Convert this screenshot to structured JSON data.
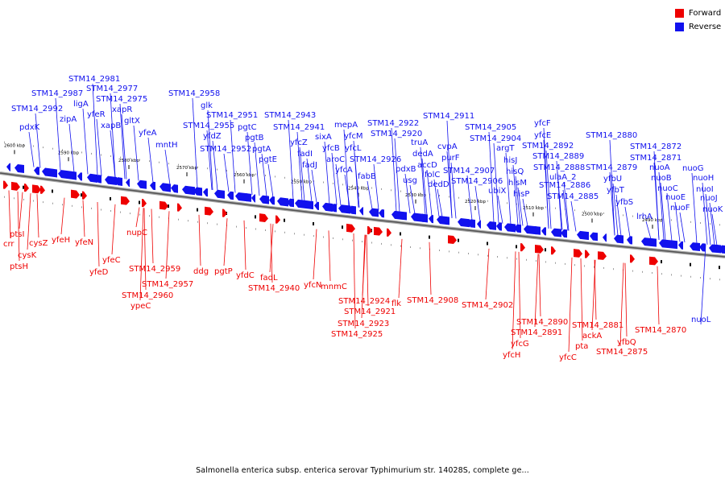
{
  "legend": {
    "items": [
      {
        "label": "Forward",
        "color": "#ee0000"
      },
      {
        "label": "Reverse",
        "color": "#1111ee"
      }
    ]
  },
  "colors": {
    "forward": "#ee0000",
    "reverse": "#1111ee",
    "backbone": "#888888"
  },
  "caption": "Salmonella enterica subsp. enterica serovar Typhimurium str. 14028S, complete ge...",
  "ticks": [
    "2600 kbp",
    "2590 kbp",
    "2580 kbp",
    "2570 kbp",
    "2560 kbp",
    "2550 kbp",
    "2540 kbp",
    "2530 kbp",
    "2520 kbp",
    "2510 kbp",
    "2500 kbp",
    "2490 kbp"
  ],
  "reverse_labels": [
    "STM14_2992",
    "pdxK",
    "STM14_2987",
    "zipA",
    "STM14_2981",
    "ligA",
    "STM14_2977",
    "yfeR",
    "STM14_2975",
    "xapR",
    "xapB",
    "gltX",
    "yfeA",
    "mntH",
    "STM14_2958",
    "glk",
    "STM14_2951",
    "STM14_2955",
    "pgtC",
    "yfdZ",
    "pgtB",
    "STM14_2952",
    "pgtA",
    "pgtE",
    "STM14_2943",
    "STM14_2941",
    "yfcZ",
    "fadI",
    "fadJ",
    "sixA",
    "yfcB",
    "aroC",
    "mepA",
    "yfcM",
    "yfcL",
    "yfcA",
    "STM14_2926",
    "fabB",
    "STM14_2922",
    "STM14_2920",
    "pdxB",
    "usg",
    "truA",
    "dedA",
    "accD",
    "folC",
    "dedD",
    "STM14_2911",
    "cvpA",
    "purF",
    "STM14_2907",
    "STM14_2906",
    "STM14_2905",
    "STM14_2904",
    "argT",
    "ubiX",
    "hisJ",
    "hisQ",
    "hisM",
    "hisP",
    "yfcF",
    "yfcE",
    "STM14_2892",
    "STM14_2889",
    "STM14_2888",
    "ulaA_2",
    "STM14_2886",
    "STM14_2885",
    "STM14_2880",
    "STM14_2879",
    "yfbU",
    "yfbT",
    "yfbS",
    "lrhA",
    "STM14_2872",
    "STM14_2871",
    "nuoA",
    "nuoB",
    "nuoC",
    "nuoE",
    "nuoF",
    "nuoG",
    "nuoH",
    "nuoI",
    "nuoJ",
    "nuoK",
    "nuoL"
  ],
  "forward_labels": [
    "crr",
    "ptsI",
    "ptsH",
    "cysK",
    "cysZ",
    "yfeH",
    "yfeN",
    "yfeC",
    "yfeD",
    "nupC",
    "STM14_2959",
    "STM14_2957",
    "STM14_2960",
    "ypeC",
    "ddg",
    "pgtP",
    "yfdC",
    "fadL",
    "STM14_2940",
    "yfcN",
    "mnmC",
    "STM14_2924",
    "STM14_2921",
    "STM14_2923",
    "STM14_2925",
    "flk",
    "STM14_2908",
    "STM14_2902",
    "STM14_2890",
    "STM14_2891",
    "yfcG",
    "yfcH",
    "pta",
    "ackA",
    "STM14_2881",
    "yfcC",
    "yfbQ",
    "STM14_2875",
    "STM14_2870"
  ]
}
